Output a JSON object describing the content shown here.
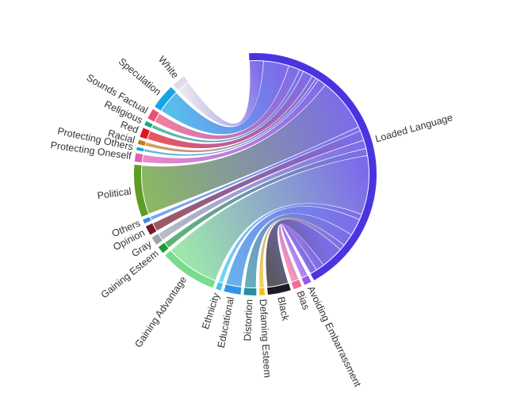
{
  "chart_data": {
    "type": "chord",
    "anchor": "Loaded Language",
    "groups": [
      {
        "name": "Loaded Language",
        "start": -3,
        "end": 151,
        "color": "#4a34e0"
      },
      {
        "name": "Avoiding Embarrassment",
        "start": 152.5,
        "end": 156,
        "color": "#9a5ae8"
      },
      {
        "name": "Bias",
        "start": 157.5,
        "end": 161.5,
        "color": "#f06e9b"
      },
      {
        "name": "Black",
        "start": 163,
        "end": 174,
        "color": "#1b1b24"
      },
      {
        "name": "Defaming Esteem",
        "start": 175.5,
        "end": 178,
        "color": "#f2c01c"
      },
      {
        "name": "Distortion",
        "start": 179.5,
        "end": 185.5,
        "color": "#2a8f9f"
      },
      {
        "name": "Educational",
        "start": 187,
        "end": 195,
        "color": "#2f93e6"
      },
      {
        "name": "Ethnicity",
        "start": 196.5,
        "end": 199,
        "color": "#3ec8ea"
      },
      {
        "name": "Gaining Advantage",
        "start": 200.5,
        "end": 228,
        "color": "#78dc8a"
      },
      {
        "name": "Gaining Esteem",
        "start": 229.5,
        "end": 233,
        "color": "#1f9a3a"
      },
      {
        "name": "Gray",
        "start": 234.5,
        "end": 238.5,
        "color": "#9aa6ad"
      },
      {
        "name": "Opinion",
        "start": 240,
        "end": 244.5,
        "color": "#751a24"
      },
      {
        "name": "Others",
        "start": 246,
        "end": 248,
        "color": "#3d8ce6"
      },
      {
        "name": "Political",
        "start": 249.5,
        "end": 274.5,
        "color": "#5e9d25"
      },
      {
        "name": "Protecting Oneself",
        "start": 276,
        "end": 280,
        "color": "#e35cb8"
      },
      {
        "name": "Protecting Others",
        "start": 281.5,
        "end": 283,
        "color": "#1da0d6"
      },
      {
        "name": "Racial",
        "start": 284.5,
        "end": 286.5,
        "color": "#c8771a"
      },
      {
        "name": "Red",
        "start": 288,
        "end": 292.5,
        "color": "#e0141f"
      },
      {
        "name": "Religious",
        "start": 294,
        "end": 296,
        "color": "#18a87a"
      },
      {
        "name": "Sounds Factual",
        "start": 297.5,
        "end": 302.5,
        "color": "#ea4f77"
      },
      {
        "name": "Speculation",
        "start": 304,
        "end": 316,
        "color": "#17a4e6"
      },
      {
        "name": "White",
        "start": 317.5,
        "end": 324,
        "color": "#e1dce9"
      }
    ],
    "links": [
      {
        "source": "Loaded Language",
        "target": "White",
        "value": 5
      },
      {
        "source": "Loaded Language",
        "target": "Speculation",
        "value": 9
      },
      {
        "source": "Loaded Language",
        "target": "Sounds Factual",
        "value": 4
      },
      {
        "source": "Loaded Language",
        "target": "Religious",
        "value": 1.5
      },
      {
        "source": "Loaded Language",
        "target": "Red",
        "value": 3.5
      },
      {
        "source": "Loaded Language",
        "target": "Racial",
        "value": 1.5
      },
      {
        "source": "Loaded Language",
        "target": "Protecting Others",
        "value": 1
      },
      {
        "source": "Loaded Language",
        "target": "Protecting Oneself",
        "value": 3
      },
      {
        "source": "Loaded Language",
        "target": "Political",
        "value": 19
      },
      {
        "source": "Loaded Language",
        "target": "Others",
        "value": 1.5
      },
      {
        "source": "Loaded Language",
        "target": "Opinion",
        "value": 3.5
      },
      {
        "source": "Loaded Language",
        "target": "Gray",
        "value": 3
      },
      {
        "source": "Loaded Language",
        "target": "Gaining Esteem",
        "value": 2.5
      },
      {
        "source": "Loaded Language",
        "target": "Gaining Advantage",
        "value": 21
      },
      {
        "source": "Loaded Language",
        "target": "Ethnicity",
        "value": 2
      },
      {
        "source": "Loaded Language",
        "target": "Educational",
        "value": 6
      },
      {
        "source": "Loaded Language",
        "target": "Distortion",
        "value": 4.5
      },
      {
        "source": "Loaded Language",
        "target": "Defaming Esteem",
        "value": 2
      },
      {
        "source": "Loaded Language",
        "target": "Black",
        "value": 8
      },
      {
        "source": "Loaded Language",
        "target": "Bias",
        "value": 3
      },
      {
        "source": "Loaded Language",
        "target": "Avoiding Embarrassment",
        "value": 2.5
      }
    ]
  }
}
